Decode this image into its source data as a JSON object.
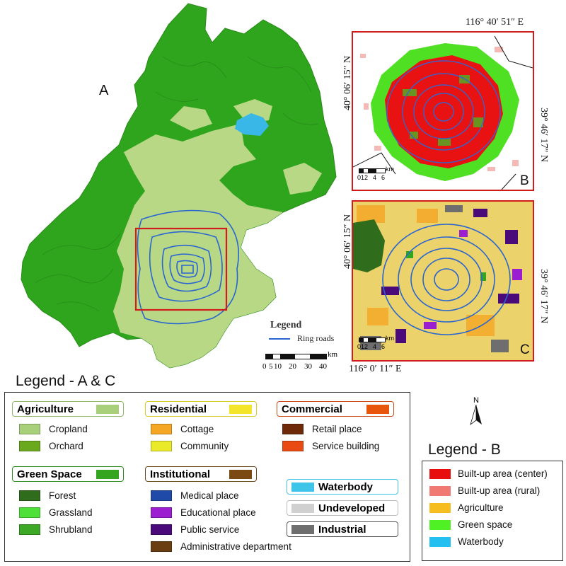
{
  "panels": {
    "a": "A",
    "b": "B",
    "c": "C"
  },
  "coords": {
    "top_lon": "116°  40′ 51″ E",
    "b_left_lat": "40°  06′ 15″ N",
    "b_right_lat": "39°  46′ 17″ N",
    "c_left_lat": "40°  06′ 15″ N",
    "c_right_lat": "39°  46′ 17″ N",
    "bottom_lon": "116°  0′ 11″ E"
  },
  "map_a_legend": {
    "title": "Legend",
    "ring_roads": "Ring roads",
    "scale_unit": "km",
    "scale_ticks": [
      "0",
      "5",
      "10",
      "20",
      "30",
      "40"
    ]
  },
  "inset_scale": {
    "unit": "km",
    "ticks": [
      "0",
      "1",
      "2",
      "4",
      "6"
    ]
  },
  "legend_ac": {
    "title": "Legend - A & C",
    "categories": [
      {
        "label": "Agriculture",
        "color": "#a8d07a",
        "border": "#8fb86a",
        "items": [
          {
            "label": "Cropland",
            "color": "#a8d07a"
          },
          {
            "label": "Orchard",
            "color": "#6aa81e"
          }
        ]
      },
      {
        "label": "Green Space",
        "color": "#33a51f",
        "border": "#2e8b1f",
        "items": [
          {
            "label": "Forest",
            "color": "#2f6d1c"
          },
          {
            "label": "Grassland",
            "color": "#4fe03a"
          },
          {
            "label": "Shrubland",
            "color": "#3ca825"
          }
        ]
      },
      {
        "label": "Residential",
        "color": "#f3e62a",
        "border": "#d8cc2a",
        "items": [
          {
            "label": "Cottage",
            "color": "#f5a623"
          },
          {
            "label": "Community",
            "color": "#eaea2a"
          }
        ]
      },
      {
        "label": "Institutional",
        "color": "#7a4a12",
        "border": "#6b4a1e",
        "items": [
          {
            "label": "Medical place",
            "color": "#1f4aa8"
          },
          {
            "label": "Educational  place",
            "color": "#9b1fd0"
          },
          {
            "label": "Public service",
            "color": "#4a0a7a"
          },
          {
            "label": "Administrative department",
            "color": "#6b3e12"
          }
        ]
      },
      {
        "label": "Commercial",
        "color": "#e8560e",
        "border": "#c84a18",
        "items": [
          {
            "label": "Retail place",
            "color": "#6e2a08"
          },
          {
            "label": "Service building",
            "color": "#e84a12"
          }
        ]
      }
    ],
    "extras": [
      {
        "label": "Waterbody",
        "color": "#3ec4e8",
        "border": "#3ec4e8"
      },
      {
        "label": "Undeveloped",
        "color": "#d0d0d0",
        "border": "#bbbbbb"
      },
      {
        "label": "Industrial",
        "color": "#6e6e6e",
        "border": "#555555"
      }
    ]
  },
  "legend_b": {
    "title": "Legend - B",
    "north": "N",
    "items": [
      {
        "label": "Built-up area (center)",
        "color": "#e80e0e"
      },
      {
        "label": "Built-up area (rural)",
        "color": "#f07a72"
      },
      {
        "label": "Agriculture",
        "color": "#f5bd1f"
      },
      {
        "label": "Green space",
        "color": "#4ff024"
      },
      {
        "label": "Waterbody",
        "color": "#22bff0"
      }
    ]
  }
}
